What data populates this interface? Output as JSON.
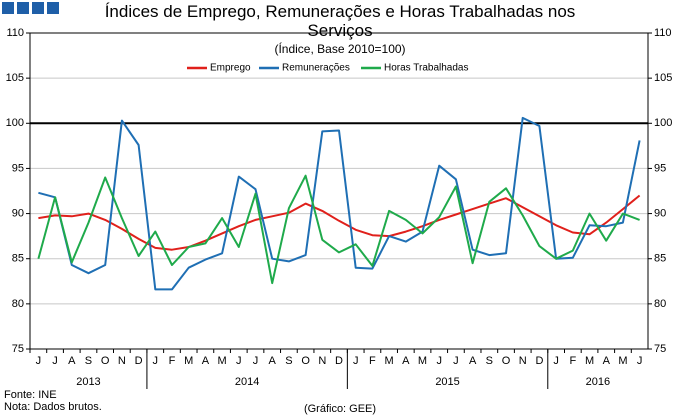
{
  "chart_data": {
    "type": "line",
    "title": "Índices de Emprego, Remunerações e Horas Trabalhadas nos Serviços",
    "subtitle": "(Índice, Base 2010=100)",
    "categories": [
      "J",
      "J",
      "A",
      "S",
      "O",
      "N",
      "D",
      "J",
      "F",
      "M",
      "A",
      "M",
      "J",
      "J",
      "A",
      "S",
      "O",
      "N",
      "D",
      "J",
      "F",
      "M",
      "A",
      "M",
      "J",
      "J",
      "A",
      "S",
      "O",
      "N",
      "D",
      "J",
      "F",
      "M",
      "A",
      "M",
      "J"
    ],
    "year_labels": [
      "2013",
      "2014",
      "2015",
      "2016"
    ],
    "year_starts": [
      0,
      7,
      19,
      31
    ],
    "series": [
      {
        "name": "Emprego",
        "color": "#e0201b",
        "values": [
          89.5,
          89.8,
          89.7,
          90.0,
          89.3,
          88.3,
          87.2,
          86.2,
          86.0,
          86.3,
          87.0,
          87.8,
          88.6,
          89.3,
          89.7,
          90.1,
          91.1,
          90.3,
          89.2,
          88.2,
          87.6,
          87.5,
          88.0,
          88.6,
          89.3,
          89.9,
          90.5,
          91.1,
          91.7,
          90.7,
          89.7,
          88.7,
          87.9,
          87.7,
          89.0,
          90.5,
          92.0
        ]
      },
      {
        "name": "Remunerações",
        "color": "#1f6fb4",
        "values": [
          92.3,
          91.8,
          84.3,
          83.4,
          84.3,
          100.3,
          97.6,
          81.6,
          81.6,
          84.0,
          84.9,
          85.6,
          94.1,
          92.7,
          85.0,
          84.7,
          85.4,
          99.1,
          99.2,
          84.0,
          83.9,
          87.5,
          86.9,
          88.0,
          95.3,
          93.8,
          86.0,
          85.4,
          85.6,
          100.6,
          99.7,
          85.0,
          85.1,
          88.7,
          88.6,
          89.0,
          98.1
        ]
      },
      {
        "name": "Horas Trabalhadas",
        "color": "#1faa4b",
        "values": [
          85.0,
          91.8,
          84.6,
          89.0,
          94.0,
          89.5,
          85.3,
          88.0,
          84.3,
          86.3,
          86.7,
          89.5,
          86.3,
          92.2,
          82.3,
          90.6,
          94.2,
          87.1,
          85.7,
          86.6,
          84.2,
          90.3,
          89.3,
          87.8,
          89.6,
          93.0,
          84.5,
          91.3,
          92.8,
          89.8,
          86.4,
          85.0,
          85.9,
          90.0,
          87.0,
          90.0,
          89.3
        ]
      }
    ],
    "reference_line": 100,
    "ylim": [
      75,
      110
    ],
    "yticks": [
      75,
      80,
      85,
      90,
      95,
      100,
      105,
      110
    ],
    "y2lim": [
      75,
      110
    ],
    "y2ticks": [
      75,
      80,
      85,
      90,
      95,
      100,
      105,
      110
    ],
    "legend": "top",
    "notes": [
      "Fonte: INE",
      "Nota: Dados brutos."
    ],
    "credit": "(Gráfico: GEE)"
  }
}
